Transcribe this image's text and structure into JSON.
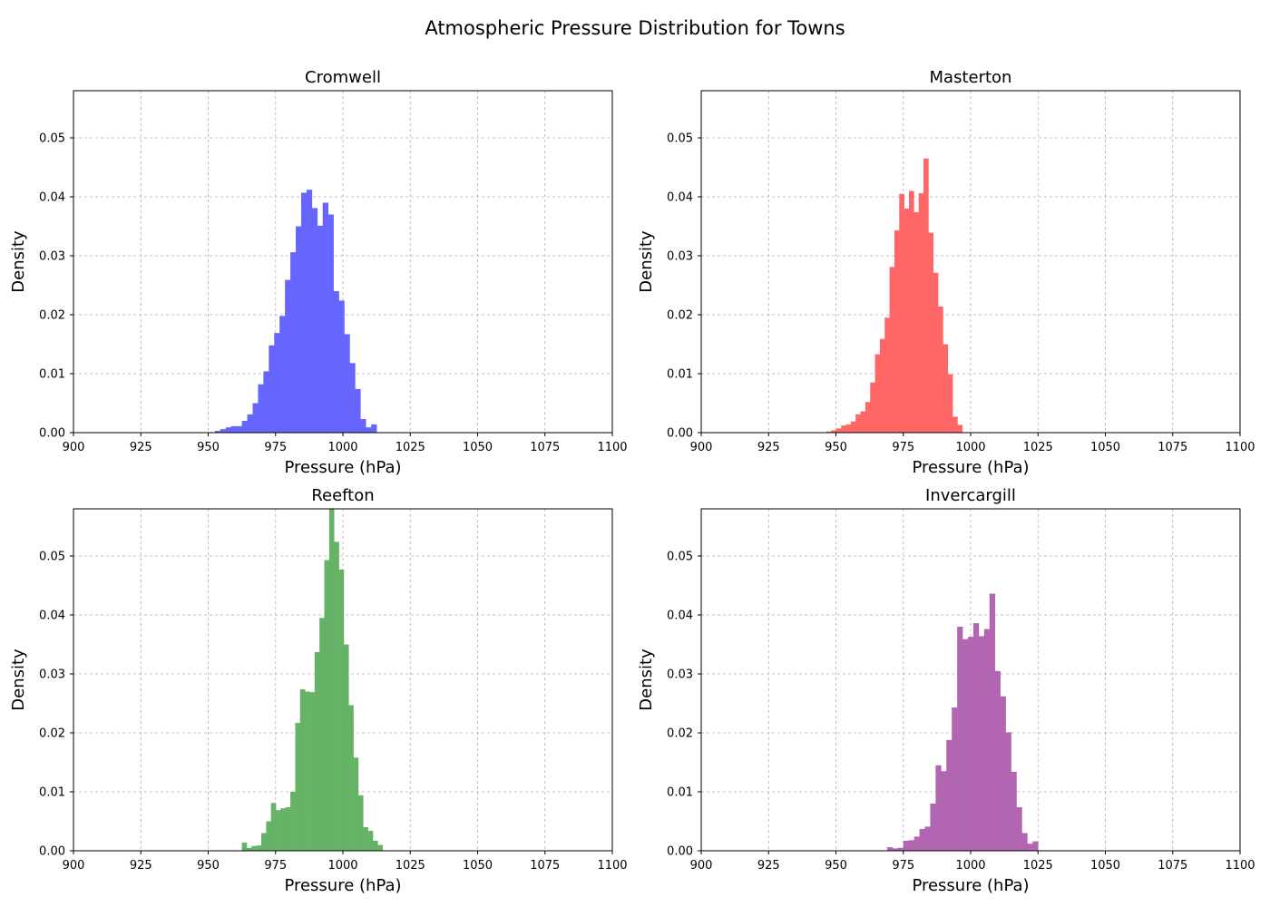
{
  "figure": {
    "title": "Atmospheric Pressure Distribution for Towns"
  },
  "chart_data": [
    {
      "type": "histogram",
      "title": "Cromwell",
      "xlabel": "Pressure (hPa)",
      "ylabel": "Density",
      "xlim": [
        900,
        1100
      ],
      "ylim": [
        0,
        0.058
      ],
      "xticks": [
        900,
        925,
        950,
        975,
        1000,
        1025,
        1050,
        1075,
        1100
      ],
      "yticks": [
        0.0,
        0.01,
        0.02,
        0.03,
        0.04,
        0.05
      ],
      "ytick_labels": [
        "0.00",
        "0.01",
        "0.02",
        "0.03",
        "0.04",
        "0.05"
      ],
      "color": "#6666ff",
      "grid": true,
      "bin_start": 952.5,
      "bin_width": 2.0,
      "values": [
        0.0003,
        0.0006,
        0.0009,
        0.0011,
        0.0011,
        0.002,
        0.0031,
        0.005,
        0.0082,
        0.0104,
        0.0148,
        0.0169,
        0.0198,
        0.0259,
        0.0306,
        0.035,
        0.0407,
        0.0412,
        0.0381,
        0.0351,
        0.039,
        0.037,
        0.024,
        0.0224,
        0.0167,
        0.0118,
        0.0074,
        0.0023,
        0.0009,
        0.0014
      ]
    },
    {
      "type": "histogram",
      "title": "Masterton",
      "xlabel": "Pressure (hPa)",
      "ylabel": "Density",
      "xlim": [
        900,
        1100
      ],
      "ylim": [
        0,
        0.058
      ],
      "xticks": [
        900,
        925,
        950,
        975,
        1000,
        1025,
        1050,
        1075,
        1100
      ],
      "yticks": [
        0.0,
        0.01,
        0.02,
        0.03,
        0.04,
        0.05
      ],
      "ytick_labels": [
        "0.00",
        "0.01",
        "0.02",
        "0.03",
        "0.04",
        "0.05"
      ],
      "color": "#ff6666",
      "grid": true,
      "bin_start": 946.5,
      "bin_width": 1.8,
      "values": [
        0.0002,
        0.0004,
        0.0007,
        0.0012,
        0.0014,
        0.0019,
        0.0031,
        0.0036,
        0.0052,
        0.0085,
        0.0133,
        0.0159,
        0.0195,
        0.0281,
        0.0343,
        0.0405,
        0.038,
        0.041,
        0.0374,
        0.0406,
        0.0465,
        0.0339,
        0.0271,
        0.0214,
        0.015,
        0.0099,
        0.0027,
        0.0013
      ]
    },
    {
      "type": "histogram",
      "title": "Reefton",
      "xlabel": "Pressure (hPa)",
      "ylabel": "Density",
      "xlim": [
        900,
        1100
      ],
      "ylim": [
        0,
        0.058
      ],
      "xticks": [
        900,
        925,
        950,
        975,
        1000,
        1025,
        1050,
        1075,
        1100
      ],
      "yticks": [
        0.0,
        0.01,
        0.02,
        0.03,
        0.04,
        0.05
      ],
      "ytick_labels": [
        "0.00",
        "0.01",
        "0.02",
        "0.03",
        "0.04",
        "0.05"
      ],
      "color": "#66b266",
      "grid": true,
      "bin_start": 962.5,
      "bin_width": 1.8,
      "values": [
        0.0014,
        0.0005,
        0.0008,
        0.0009,
        0.003,
        0.005,
        0.0081,
        0.0069,
        0.0072,
        0.0074,
        0.01,
        0.0217,
        0.0274,
        0.027,
        0.0269,
        0.0337,
        0.0395,
        0.0493,
        0.0583,
        0.0524,
        0.0477,
        0.035,
        0.0247,
        0.0158,
        0.0094,
        0.004,
        0.0034,
        0.0017,
        0.001
      ]
    },
    {
      "type": "histogram",
      "title": "Invercargill",
      "xlabel": "Pressure (hPa)",
      "ylabel": "Density",
      "xlim": [
        900,
        1100
      ],
      "ylim": [
        0,
        0.058
      ],
      "xticks": [
        900,
        925,
        950,
        975,
        1000,
        1025,
        1050,
        1075,
        1100
      ],
      "yticks": [
        0.0,
        0.01,
        0.02,
        0.03,
        0.04,
        0.05
      ],
      "ytick_labels": [
        "0.00",
        "0.01",
        "0.02",
        "0.03",
        "0.04",
        "0.05"
      ],
      "color": "#b266b2",
      "grid": true,
      "bin_start": 969.0,
      "bin_width": 2.0,
      "values": [
        0.0006,
        0.0004,
        0.0005,
        0.0017,
        0.0018,
        0.0024,
        0.0037,
        0.0041,
        0.008,
        0.0145,
        0.0135,
        0.0188,
        0.0243,
        0.038,
        0.0359,
        0.0363,
        0.0386,
        0.0364,
        0.0376,
        0.0436,
        0.0305,
        0.0262,
        0.0201,
        0.0134,
        0.0074,
        0.003,
        0.0012,
        0.0016
      ]
    }
  ]
}
